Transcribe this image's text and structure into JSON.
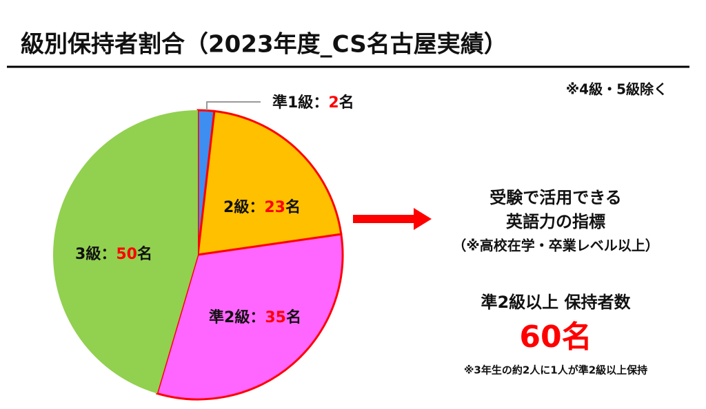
{
  "chart_data": {
    "type": "pie",
    "title": "級別保持者割合（2023年度_CS名古屋実績）",
    "note": "※4級・5級除く",
    "categories": [
      "準1級",
      "2級",
      "準2級",
      "3級"
    ],
    "values": [
      2,
      23,
      35,
      50
    ],
    "colors": [
      "#3d8ef0",
      "#ffc000",
      "#ff66ff",
      "#92d050"
    ],
    "outlined": [
      true,
      true,
      true,
      false
    ],
    "outline_color": "#ff0000",
    "label_separator": "：",
    "unit": "名",
    "value_color": "#ff0000"
  },
  "side_panel": {
    "lines": [
      "受験で活用できる",
      "英語力の指標",
      "（※高校在学・卒業レベル以上）"
    ],
    "count_heading": "準2級以上 保持者数",
    "count": "60名",
    "footnote": "※3年生の約2人に1人が準2級以上保持"
  }
}
